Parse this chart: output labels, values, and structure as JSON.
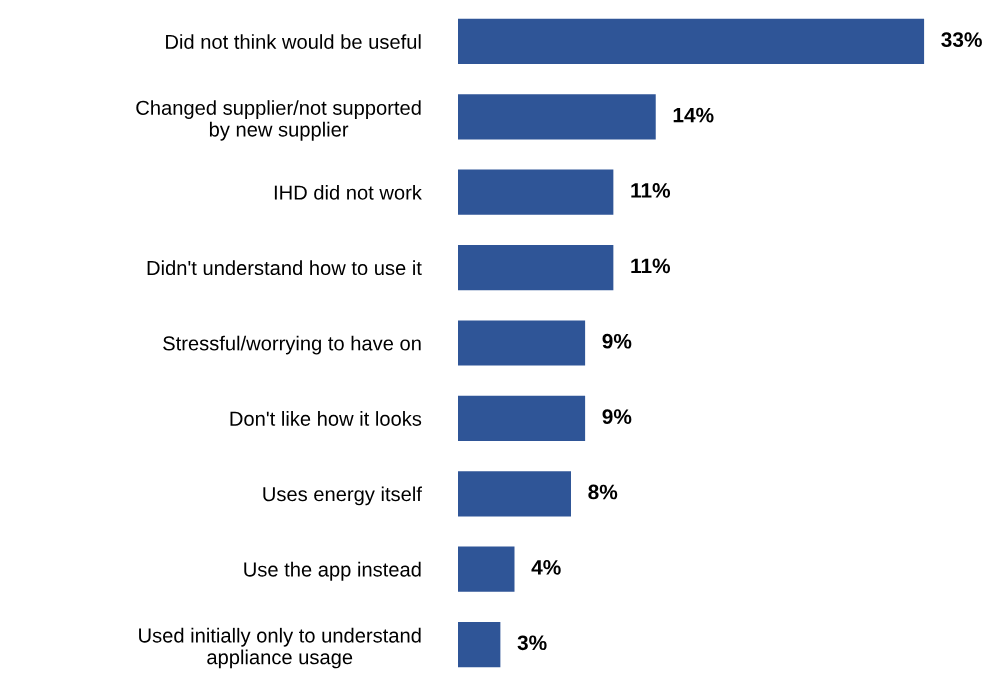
{
  "chart_data": {
    "type": "bar",
    "orientation": "horizontal",
    "categories": [
      "Did not think would be useful",
      "Changed supplier/not supported\nby new supplier",
      "IHD did not work",
      "Didn't understand how to use it",
      "Stressful/worrying to have on",
      "Don't like how it looks",
      "Uses energy itself",
      "Use the app instead",
      "Used initially only to understand\nappliance usage"
    ],
    "values": [
      33,
      14,
      11,
      11,
      9,
      9,
      8,
      4,
      3
    ],
    "value_labels": [
      "33%",
      "14%",
      "11%",
      "11%",
      "9%",
      "9%",
      "8%",
      "4%",
      "3%"
    ],
    "color": "#2f5597",
    "tick_labels": "y",
    "grid": false,
    "legend": false
  }
}
